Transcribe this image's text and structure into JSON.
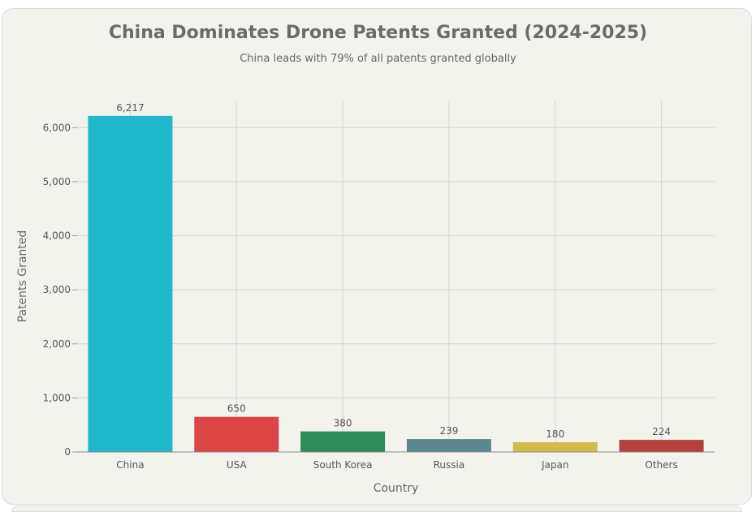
{
  "chart_data": {
    "type": "bar",
    "title": "China Dominates Drone Patents Granted (2024-2025)",
    "subtitle": "China leads with 79% of all patents granted globally",
    "xlabel": "Country",
    "ylabel": "Patents Granted",
    "categories": [
      "China",
      "USA",
      "South Korea",
      "Russia",
      "Japan",
      "Others"
    ],
    "values": [
      6217,
      650,
      380,
      239,
      180,
      224
    ],
    "value_labels": [
      "6,217",
      "650",
      "380",
      "239",
      "180",
      "224"
    ],
    "colors": [
      "#1fb8cd",
      "#db4545",
      "#2e8b57",
      "#5d878f",
      "#d2ba4c",
      "#b4413c"
    ],
    "ylim": [
      0,
      6500
    ],
    "yticks": [
      0,
      1000,
      2000,
      3000,
      4000,
      5000,
      6000
    ],
    "ytick_labels": [
      "0",
      "1,000",
      "2,000",
      "3,000",
      "4,000",
      "5,000",
      "6,000"
    ],
    "grid": true,
    "legend": "none"
  }
}
